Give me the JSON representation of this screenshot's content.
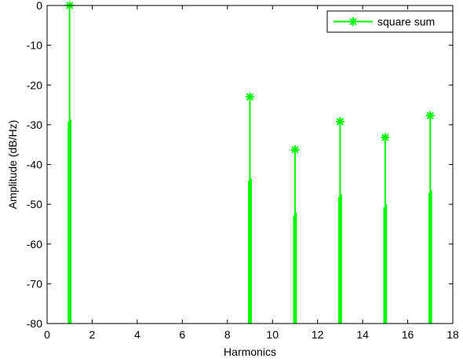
{
  "chart_data": {
    "type": "line",
    "title": "",
    "xlabel": "Harmonics",
    "ylabel": "Amplitude (dB/Hz)",
    "xlim": [
      0,
      18
    ],
    "ylim": [
      -80,
      0
    ],
    "xticks": [
      0,
      2,
      4,
      6,
      8,
      10,
      12,
      14,
      16,
      18
    ],
    "yticks": [
      0,
      -10,
      -20,
      -30,
      -40,
      -50,
      -60,
      -70,
      -80
    ],
    "grid": false,
    "legend_position": "top-right",
    "series": [
      {
        "name": "square sum",
        "color": "#00ff00",
        "marker": "asterisk",
        "peaks": [
          {
            "x": 1,
            "y": 0
          },
          {
            "x": 9,
            "y": -23
          },
          {
            "x": 11,
            "y": -36.3
          },
          {
            "x": 13,
            "y": -29.2
          },
          {
            "x": 15,
            "y": -33.2
          },
          {
            "x": 17,
            "y": -27.7
          }
        ]
      }
    ]
  }
}
